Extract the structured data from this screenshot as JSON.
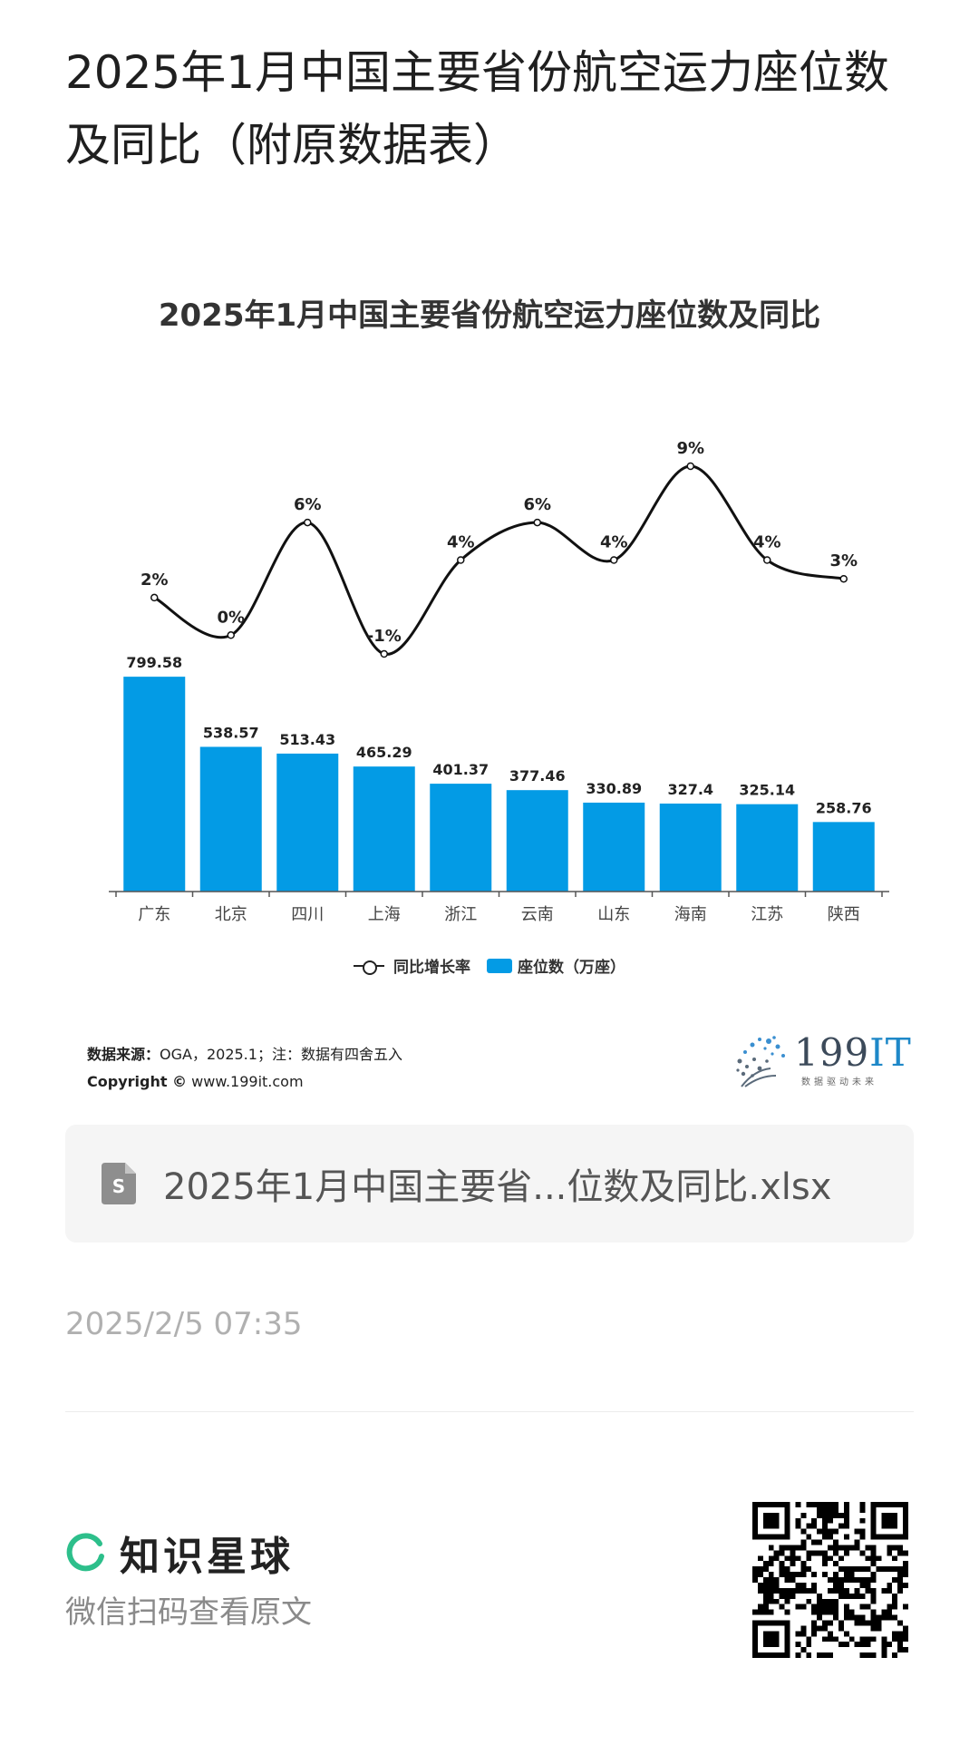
{
  "post": {
    "title": "2025年1月中国主要省份航空运力座位数及同比（附原数据表）"
  },
  "chart_data": {
    "type": "bar",
    "title": "2025年1月中国主要省份航空运力座位数及同比",
    "categories": [
      "广东",
      "北京",
      "四川",
      "上海",
      "浙江",
      "云南",
      "山东",
      "海南",
      "江苏",
      "陕西"
    ],
    "series": [
      {
        "name": "座位数（万座）",
        "type": "bar",
        "values": [
          799.58,
          538.57,
          513.43,
          465.29,
          401.37,
          377.46,
          330.89,
          327.4,
          325.14,
          258.76
        ],
        "labels": [
          "799.58",
          "538.57",
          "513.43",
          "465.29",
          "401.37",
          "377.46",
          "330.89",
          "327.4",
          "325.14",
          "258.76"
        ],
        "color": "#039be5"
      },
      {
        "name": "同比增长率",
        "type": "line",
        "values": [
          2,
          0,
          6,
          -1,
          4,
          6,
          4,
          9,
          4,
          3
        ],
        "labels": [
          "2%",
          "0%",
          "6%",
          "-1%",
          "4%",
          "6%",
          "4%",
          "9%",
          "4%",
          "3%"
        ],
        "color": "#111111"
      }
    ],
    "ylim_bar": [
      0,
      800
    ],
    "ylim_line": [
      -1,
      9
    ],
    "grid": false,
    "legend": "bottom"
  },
  "legend": {
    "line_label": "同比增长率",
    "bar_label": "座位数（万座）"
  },
  "source": {
    "label": "数据来源：",
    "text": "OGA，2025.1；注：数据有四舍五入",
    "copyright_label": "Copyright ©",
    "site": "www.199it.com"
  },
  "logo": {
    "brand_num": "199",
    "brand_it": "IT",
    "tagline": "数据驱动未来"
  },
  "file": {
    "name": "2025年1月中国主要省...位数及同比.xlsx",
    "icon": "spreadsheet-file-icon"
  },
  "timestamp": "2025/2/5 07:35",
  "footer": {
    "app_name": "知识星球",
    "scan_tip": "微信扫码查看原文",
    "qr_icon": "qr-code"
  },
  "colors": {
    "bar": "#039be5",
    "line": "#111111",
    "brand_green": "#2dbf8b"
  }
}
